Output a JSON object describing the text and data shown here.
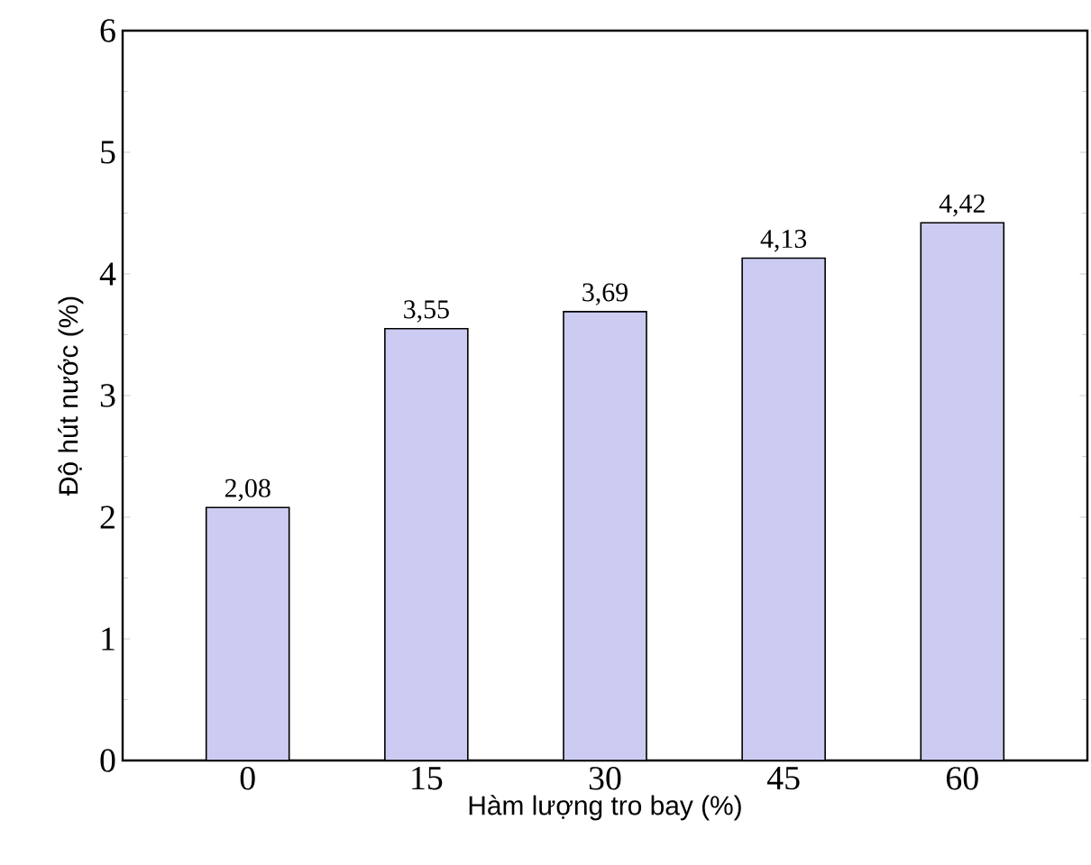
{
  "chart_data": {
    "type": "bar",
    "xlabel": "Hàm lượng tro bay (%)",
    "ylabel": "Độ hút nước (%)",
    "categories": [
      "0",
      "15",
      "30",
      "45",
      "60"
    ],
    "values": [
      2.08,
      3.55,
      3.69,
      4.13,
      4.42
    ],
    "value_labels": [
      "2,08",
      "3,55",
      "3,69",
      "4,13",
      "4,42"
    ],
    "color": "#ccccf2",
    "ylim": [
      0,
      6
    ],
    "yticks": [
      0,
      1,
      2,
      3,
      4,
      5,
      6
    ],
    "grid": false
  }
}
